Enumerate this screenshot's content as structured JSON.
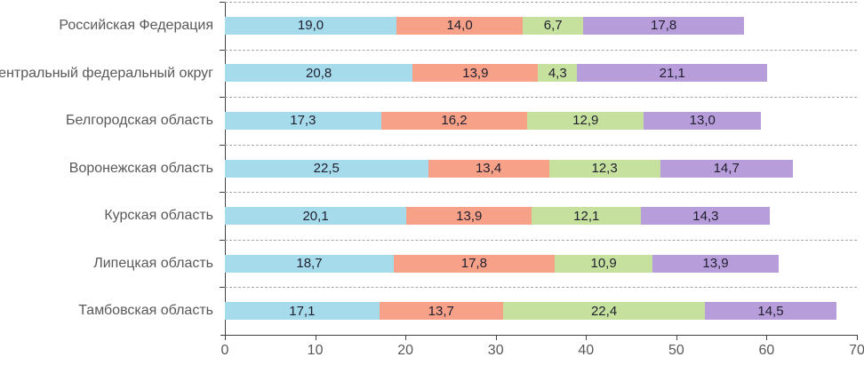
{
  "chart_data": {
    "type": "bar",
    "orientation": "horizontal",
    "stacked": true,
    "title": "",
    "xlabel": "",
    "ylabel": "",
    "xlim": [
      0,
      70
    ],
    "x_ticks": [
      "0",
      "10",
      "20",
      "30",
      "40",
      "50",
      "60",
      "70"
    ],
    "grid": "horizontal-dashed-between-categories",
    "legend": "none",
    "categories": [
      "Российская Федерация",
      "Центральный федеральный округ",
      "Белгородская область",
      "Воронежская область",
      "Курская область",
      "Липецкая область",
      "Тамбовская область"
    ],
    "series": [
      {
        "name": "series1",
        "color": "#a6dbec",
        "values": [
          19.0,
          20.8,
          17.3,
          22.5,
          20.1,
          18.7,
          17.1
        ],
        "labels": [
          "19,0",
          "20,8",
          "17,3",
          "22,5",
          "20,1",
          "18,7",
          "17,1"
        ]
      },
      {
        "name": "series2",
        "color": "#f8a189",
        "values": [
          14.0,
          13.9,
          16.2,
          13.4,
          13.9,
          17.8,
          13.7
        ],
        "labels": [
          "14,0",
          "13,9",
          "16,2",
          "13,4",
          "13,9",
          "17,8",
          "13,7"
        ]
      },
      {
        "name": "series3",
        "color": "#c6e19e",
        "values": [
          6.7,
          4.3,
          12.9,
          12.3,
          12.1,
          10.9,
          22.4
        ],
        "labels": [
          "6,7",
          "4,3",
          "12,9",
          "12,3",
          "12,1",
          "10,9",
          "22,4"
        ]
      },
      {
        "name": "series4",
        "color": "#b89ddb",
        "values": [
          17.8,
          21.1,
          13.0,
          14.7,
          14.3,
          13.9,
          14.5
        ],
        "labels": [
          "17,8",
          "21,1",
          "13,0",
          "14,7",
          "14,3",
          "13,9",
          "14,5"
        ]
      }
    ],
    "colors": {
      "category_label": "#595959",
      "value_label": "#1f1f2e",
      "axis_line": "#404040",
      "gridline": "#a6a6a6",
      "tick_label": "#595959"
    }
  }
}
